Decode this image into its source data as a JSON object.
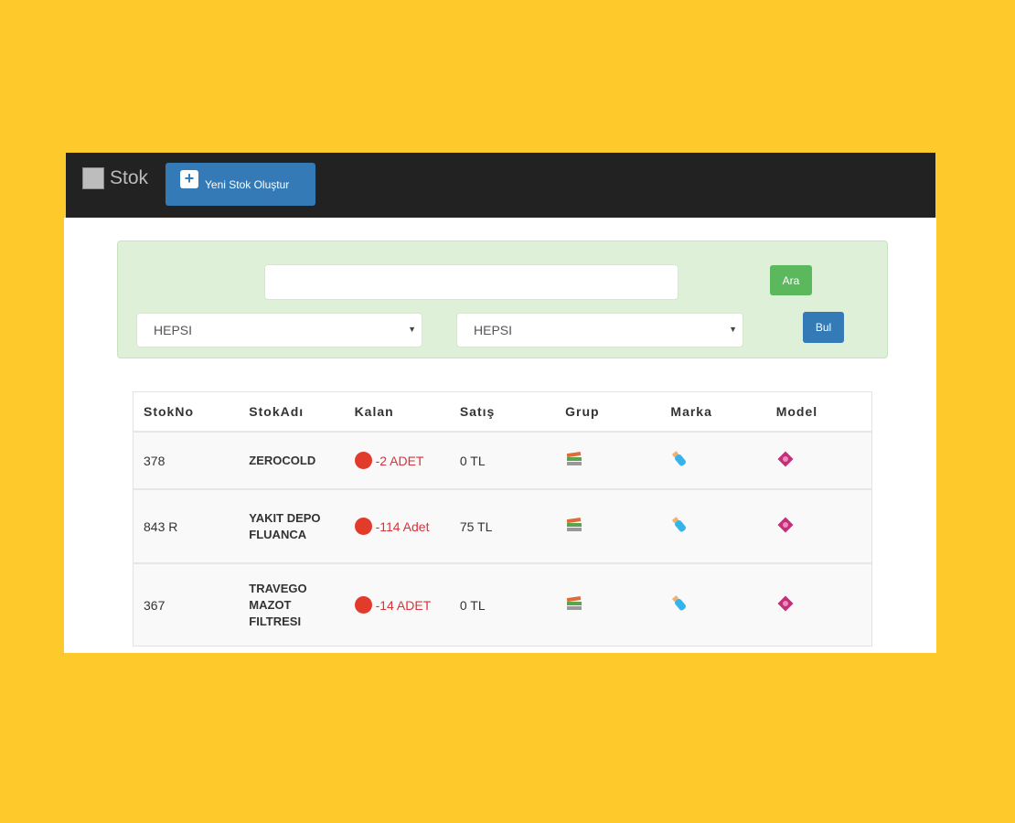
{
  "navbar": {
    "brand": "Stok",
    "new_button": "Yeni Stok Oluştur"
  },
  "search": {
    "query": "",
    "placeholder": "",
    "search_button": "Ara",
    "find_button": "Bul",
    "select1": "HEPSI",
    "select2": "HEPSI"
  },
  "table": {
    "columns": [
      "StokNo",
      "StokAdı",
      "Kalan",
      "Satış",
      "Grup",
      "Marka",
      "Model"
    ],
    "rows": [
      {
        "stok_no": "378",
        "stok_adi": "ZEROCOLD",
        "kalan": "-2 ADET",
        "satis": "0 TL"
      },
      {
        "stok_no": "843 R",
        "stok_adi": "YAKIT DEPO FLUANCA",
        "kalan": "-114 Adet",
        "satis": "75 TL"
      },
      {
        "stok_no": "367",
        "stok_adi": "TRAVEGO MAZOT FILTRESI",
        "kalan": "-14 ADET",
        "satis": "0 TL"
      }
    ],
    "icons": {
      "grup": "books-icon",
      "marka": "baby-bottle-icon",
      "model": "diamond-flower-icon"
    }
  },
  "colors": {
    "background": "#FDC92B",
    "navbar": "#222222",
    "primary": "#337ab7",
    "success": "#5cb85c",
    "danger": "#d9323a"
  }
}
